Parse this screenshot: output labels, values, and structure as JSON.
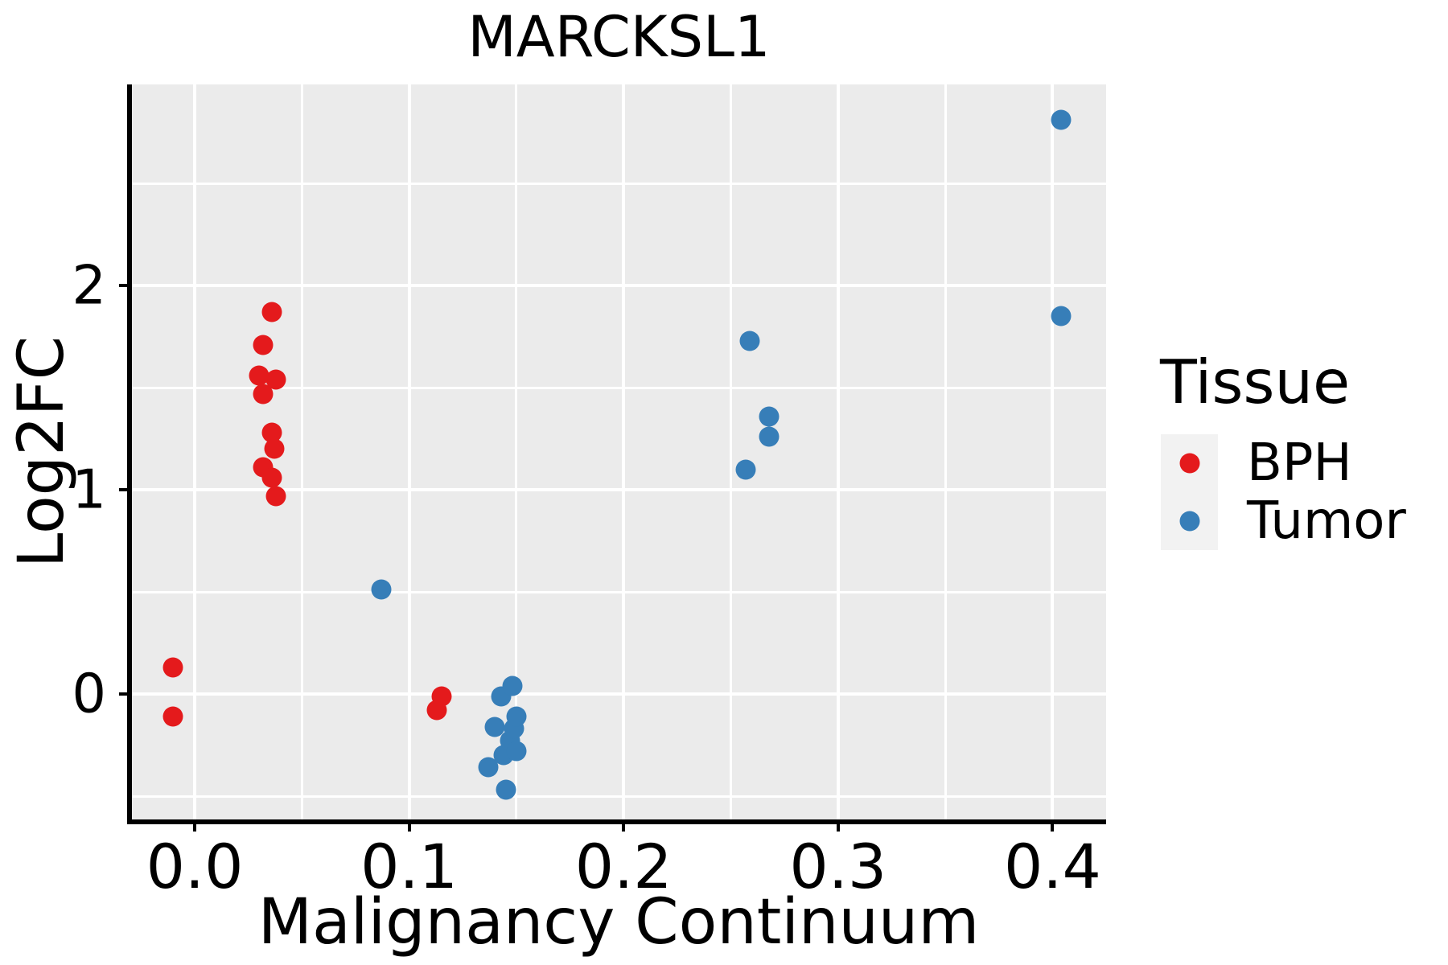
{
  "chart_data": {
    "type": "scatter",
    "title": "MARCKSL1",
    "xlabel": "Malignancy Continuum",
    "ylabel": "Log2FC",
    "xlim": [
      -0.029,
      0.425
    ],
    "ylim": [
      -0.61,
      2.98
    ],
    "grid": true,
    "x_ticks": {
      "values": [
        0.0,
        0.1,
        0.2,
        0.3,
        0.4
      ],
      "labels": [
        "0.0",
        "0.1",
        "0.2",
        "0.3",
        "0.4"
      ]
    },
    "y_ticks": {
      "values": [
        0,
        1,
        2
      ],
      "labels": [
        "0",
        "1",
        "2"
      ]
    },
    "x_minor": [
      0.05,
      0.15,
      0.25,
      0.35
    ],
    "y_minor": [
      -0.5,
      0.5,
      1.5,
      2.5
    ],
    "legend": {
      "title": "Tissue",
      "position": "right",
      "entries": [
        {
          "label": "BPH",
          "color": "#E41A1C"
        },
        {
          "label": "Tumor",
          "color": "#377EB8"
        }
      ]
    },
    "series": [
      {
        "name": "BPH",
        "color": "#E41A1C",
        "points": [
          [
            -0.01,
            0.13
          ],
          [
            -0.01,
            -0.11
          ],
          [
            0.03,
            1.56
          ],
          [
            0.032,
            1.71
          ],
          [
            0.032,
            1.47
          ],
          [
            0.032,
            1.11
          ],
          [
            0.036,
            1.87
          ],
          [
            0.036,
            1.28
          ],
          [
            0.036,
            1.06
          ],
          [
            0.037,
            1.2
          ],
          [
            0.038,
            1.54
          ],
          [
            0.038,
            0.97
          ],
          [
            0.113,
            -0.08
          ],
          [
            0.115,
            -0.01
          ]
        ]
      },
      {
        "name": "Tumor",
        "color": "#377EB8",
        "points": [
          [
            0.087,
            0.51
          ],
          [
            0.137,
            -0.36
          ],
          [
            0.14,
            -0.16
          ],
          [
            0.143,
            -0.01
          ],
          [
            0.144,
            -0.3
          ],
          [
            0.145,
            -0.47
          ],
          [
            0.147,
            -0.23
          ],
          [
            0.148,
            0.04
          ],
          [
            0.149,
            -0.17
          ],
          [
            0.15,
            -0.11
          ],
          [
            0.15,
            -0.28
          ],
          [
            0.257,
            1.1
          ],
          [
            0.259,
            1.73
          ],
          [
            0.268,
            1.36
          ],
          [
            0.268,
            1.26
          ],
          [
            0.404,
            2.81
          ],
          [
            0.404,
            1.85
          ]
        ]
      }
    ],
    "colors": {
      "panel_bg": "#EBEBEB",
      "grid": "#FFFFFF",
      "axis": "#000000",
      "text": "#000000",
      "legend_key_bg": "#F2F2F2"
    }
  }
}
